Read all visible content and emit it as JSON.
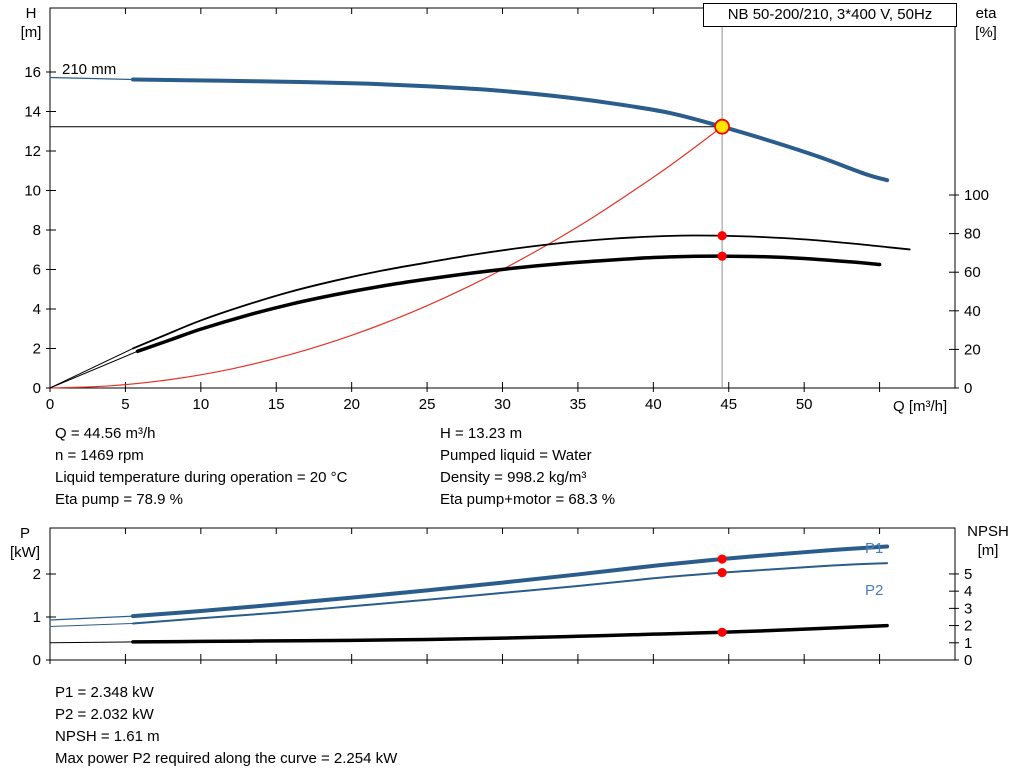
{
  "title_box": {
    "text": "NB 50-200/210, 3*400 V, 50Hz"
  },
  "labels": {
    "h_axis": "H",
    "h_unit": "[m]",
    "eta_axis": "eta",
    "eta_unit": "[%]",
    "q_axis": "Q [m³/h]",
    "p_axis": "P",
    "p_unit": "[kW]",
    "npsh_axis": "NPSH",
    "npsh_unit": "[m]",
    "impeller": "210 mm",
    "p1": "P1",
    "p2": "P2"
  },
  "info_top": {
    "left": [
      "Q = 44.56 m³/h",
      "n = 1469 rpm",
      "Liquid temperature during operation = 20 °C",
      "Eta pump = 78.9 %"
    ],
    "right": [
      "H = 13.23 m",
      "Pumped liquid = Water",
      "Density = 998.2 kg/m³",
      "Eta pump+motor = 68.3 %"
    ]
  },
  "info_bottom": [
    "P1 = 2.348 kW",
    "P2 = 2.032 kW",
    "NPSH = 1.61 m",
    "Max power P2 required along the curve = 2.254 kW"
  ],
  "colors": {
    "curve_blue": "#2a5d8c",
    "label_blue": "#4a7fb5",
    "curve_black": "#000000",
    "curve_red": "#e63329",
    "dot_red": "#ff0000",
    "duty_fill": "#ffe400",
    "duty_stroke": "#ff0000",
    "guide_gray": "#909090"
  },
  "chart_data": {
    "type": "line",
    "duty_point": {
      "Q_m3h": 44.56,
      "H_m": 13.23,
      "n_rpm": 1469,
      "eta_pump_pct": 78.9,
      "eta_pump_motor_pct": 68.3,
      "P1_kW": 2.348,
      "P2_kW": 2.032,
      "NPSH_m": 1.61,
      "max_P2_along_curve_kW": 2.254,
      "pumped_liquid": "Water",
      "liquid_temp_C": 20,
      "density_kg_m3": 998.2
    },
    "charts": [
      {
        "name": "qh-eta-chart",
        "title": "NB 50-200/210, 3*400 V, 50Hz",
        "x_axis": {
          "label": "Q [m³/h]",
          "min": 0,
          "max": 60,
          "ticks": [
            {
              "v": 0,
              "label": "0"
            },
            {
              "v": 5,
              "label": "5"
            },
            {
              "v": 10,
              "label": "10"
            },
            {
              "v": 15,
              "label": "15"
            },
            {
              "v": 20,
              "label": "20"
            },
            {
              "v": 25,
              "label": "25"
            },
            {
              "v": 30,
              "label": "30"
            },
            {
              "v": 35,
              "label": "35"
            },
            {
              "v": 40,
              "label": "40"
            },
            {
              "v": 45,
              "label": "45"
            },
            {
              "v": 50,
              "label": "50"
            },
            {
              "v": 55,
              "label": ""
            }
          ]
        },
        "axes": {
          "H": {
            "min": 0,
            "max": 19.24
          },
          "eta": {
            "min": 0,
            "max": 196.9
          }
        },
        "y_left": {
          "axis": "H",
          "ticks": [
            {
              "v": 0,
              "label": "0"
            },
            {
              "v": 2,
              "label": "2"
            },
            {
              "v": 4,
              "label": "4"
            },
            {
              "v": 6,
              "label": "6"
            },
            {
              "v": 8,
              "label": "8"
            },
            {
              "v": 10,
              "label": "10"
            },
            {
              "v": 12,
              "label": "12"
            },
            {
              "v": 14,
              "label": "14"
            },
            {
              "v": 16,
              "label": "16"
            }
          ]
        },
        "y_right": {
          "axis": "eta",
          "ticks": [
            {
              "v": 0,
              "label": "0"
            },
            {
              "v": 20,
              "label": "20"
            },
            {
              "v": 40,
              "label": "40"
            },
            {
              "v": 60,
              "label": "60"
            },
            {
              "v": 80,
              "label": "80"
            },
            {
              "v": 100,
              "label": "100"
            }
          ]
        },
        "guides": [
          {
            "type": "v",
            "q": 44.56,
            "color": "#909090"
          },
          {
            "type": "h",
            "axis": "H",
            "v": 13.23,
            "to_q": 44.56,
            "color": "#000000"
          }
        ],
        "series": [
          {
            "name": "head-210mm-lead",
            "axis": "H",
            "color": "#2a5d8c",
            "width": 1.2,
            "points": [
              [
                0,
                15.72
              ],
              [
                5.5,
                15.62
              ]
            ]
          },
          {
            "name": "head-210mm",
            "axis": "H",
            "color": "#2a5d8c",
            "width": 4,
            "points": [
              [
                5.5,
                15.62
              ],
              [
                9,
                15.58
              ],
              [
                13,
                15.54
              ],
              [
                17,
                15.49
              ],
              [
                21,
                15.41
              ],
              [
                25,
                15.28
              ],
              [
                29,
                15.1
              ],
              [
                33,
                14.82
              ],
              [
                37,
                14.44
              ],
              [
                41,
                13.94
              ],
              [
                44.56,
                13.23
              ],
              [
                48,
                12.45
              ],
              [
                51,
                11.7
              ],
              [
                54,
                10.85
              ],
              [
                55.5,
                10.52
              ]
            ]
          },
          {
            "name": "system-curve",
            "axis": "H",
            "color": "#e63329",
            "width": 1.2,
            "points": [
              [
                0,
                0
              ],
              [
                4,
                0.11
              ],
              [
                8,
                0.43
              ],
              [
                12,
                0.96
              ],
              [
                16,
                1.71
              ],
              [
                20,
                2.67
              ],
              [
                24,
                3.84
              ],
              [
                28,
                5.23
              ],
              [
                32,
                6.83
              ],
              [
                36,
                8.64
              ],
              [
                40,
                10.67
              ],
              [
                42,
                11.76
              ],
              [
                44.56,
                13.23
              ]
            ]
          },
          {
            "name": "eta-pump-lead",
            "axis": "eta",
            "color": "#000000",
            "width": 1,
            "points": [
              [
                0,
                0
              ],
              [
                5.5,
                20.5
              ]
            ]
          },
          {
            "name": "eta-pump",
            "axis": "eta",
            "color": "#000000",
            "width": 1.8,
            "points": [
              [
                5.5,
                20.5
              ],
              [
                7.5,
                27
              ],
              [
                10,
                35
              ],
              [
                13,
                43
              ],
              [
                16,
                50
              ],
              [
                19,
                55.8
              ],
              [
                22,
                60.8
              ],
              [
                25,
                65
              ],
              [
                28,
                69
              ],
              [
                31,
                72.4
              ],
              [
                34,
                75.2
              ],
              [
                37,
                77.2
              ],
              [
                40,
                78.5
              ],
              [
                42.5,
                79
              ],
              [
                44.56,
                78.9
              ],
              [
                47,
                78.3
              ],
              [
                50,
                77
              ],
              [
                53,
                75
              ],
              [
                55.5,
                73
              ],
              [
                57,
                71.8
              ]
            ]
          },
          {
            "name": "eta-pump-motor-lead",
            "axis": "eta",
            "color": "#000000",
            "width": 1,
            "points": [
              [
                0,
                0
              ],
              [
                5.8,
                19
              ]
            ]
          },
          {
            "name": "eta-pump-motor",
            "axis": "eta",
            "color": "#000000",
            "width": 3.5,
            "points": [
              [
                5.8,
                19
              ],
              [
                8,
                25
              ],
              [
                10,
                30.5
              ],
              [
                13,
                37.5
              ],
              [
                16,
                43.5
              ],
              [
                19,
                48.5
              ],
              [
                22,
                52.8
              ],
              [
                25,
                56.4
              ],
              [
                28,
                59.6
              ],
              [
                31,
                62.3
              ],
              [
                34,
                64.5
              ],
              [
                37,
                66.2
              ],
              [
                40,
                67.6
              ],
              [
                42.5,
                68.2
              ],
              [
                44.56,
                68.3
              ],
              [
                47,
                68.1
              ],
              [
                50,
                67.1
              ],
              [
                53,
                65.4
              ],
              [
                55,
                64
              ]
            ]
          }
        ],
        "markers": [
          {
            "q": 44.56,
            "v": 78.9,
            "axis": "eta",
            "style": "dot"
          },
          {
            "q": 44.56,
            "v": 68.3,
            "axis": "eta",
            "style": "dot"
          },
          {
            "q": 44.56,
            "v": 13.23,
            "axis": "H",
            "style": "duty"
          }
        ]
      },
      {
        "name": "power-npsh-chart",
        "x_axis": {
          "label": "",
          "min": 0,
          "max": 60,
          "ticks": [
            {
              "v": 0,
              "label": ""
            },
            {
              "v": 5,
              "label": ""
            },
            {
              "v": 10,
              "label": ""
            },
            {
              "v": 15,
              "label": ""
            },
            {
              "v": 20,
              "label": ""
            },
            {
              "v": 25,
              "label": ""
            },
            {
              "v": 30,
              "label": ""
            },
            {
              "v": 35,
              "label": ""
            },
            {
              "v": 40,
              "label": ""
            },
            {
              "v": 45,
              "label": ""
            },
            {
              "v": 50,
              "label": ""
            },
            {
              "v": 55,
              "label": ""
            }
          ]
        },
        "axes": {
          "P": {
            "min": 0,
            "max": 3.07
          },
          "NPSH": {
            "min": 0,
            "max": 7.67
          }
        },
        "y_left": {
          "axis": "P",
          "ticks": [
            {
              "v": 0,
              "label": "0"
            },
            {
              "v": 1,
              "label": "1"
            },
            {
              "v": 2,
              "label": "2"
            }
          ]
        },
        "y_right": {
          "axis": "NPSH",
          "ticks": [
            {
              "v": 0,
              "label": "0"
            },
            {
              "v": 1,
              "label": "1"
            },
            {
              "v": 2,
              "label": "2"
            },
            {
              "v": 3,
              "label": "3"
            },
            {
              "v": 4,
              "label": "4"
            },
            {
              "v": 5,
              "label": "5"
            }
          ]
        },
        "guides": [],
        "series": [
          {
            "name": "p1-lead",
            "axis": "P",
            "color": "#2a5d8c",
            "width": 1.2,
            "points": [
              [
                0,
                0.93
              ],
              [
                5.5,
                1.02
              ]
            ]
          },
          {
            "name": "p1",
            "axis": "P",
            "color": "#2a5d8c",
            "width": 4,
            "points": [
              [
                5.5,
                1.02
              ],
              [
                10,
                1.14
              ],
              [
                15,
                1.29
              ],
              [
                20,
                1.45
              ],
              [
                25,
                1.62
              ],
              [
                30,
                1.8
              ],
              [
                35,
                1.99
              ],
              [
                40,
                2.19
              ],
              [
                44.56,
                2.348
              ],
              [
                48,
                2.45
              ],
              [
                52,
                2.56
              ],
              [
                55.5,
                2.64
              ]
            ]
          },
          {
            "name": "p2-lead",
            "axis": "P",
            "color": "#2a5d8c",
            "width": 1,
            "points": [
              [
                0,
                0.78
              ],
              [
                5.5,
                0.85
              ]
            ]
          },
          {
            "name": "p2",
            "axis": "P",
            "color": "#2a5d8c",
            "width": 2,
            "points": [
              [
                5.5,
                0.85
              ],
              [
                10,
                0.97
              ],
              [
                15,
                1.1
              ],
              [
                20,
                1.25
              ],
              [
                25,
                1.4
              ],
              [
                30,
                1.56
              ],
              [
                35,
                1.72
              ],
              [
                40,
                1.9
              ],
              [
                44.56,
                2.032
              ],
              [
                48,
                2.11
              ],
              [
                52,
                2.2
              ],
              [
                55.5,
                2.254
              ]
            ]
          },
          {
            "name": "npsh-lead",
            "axis": "NPSH",
            "color": "#000000",
            "width": 1,
            "points": [
              [
                0,
                1.0
              ],
              [
                5.5,
                1.05
              ]
            ]
          },
          {
            "name": "npsh",
            "axis": "NPSH",
            "color": "#000000",
            "width": 3.5,
            "points": [
              [
                5.5,
                1.05
              ],
              [
                10,
                1.08
              ],
              [
                15,
                1.11
              ],
              [
                20,
                1.14
              ],
              [
                25,
                1.19
              ],
              [
                30,
                1.27
              ],
              [
                35,
                1.38
              ],
              [
                40,
                1.5
              ],
              [
                44.56,
                1.61
              ],
              [
                48,
                1.72
              ],
              [
                52,
                1.87
              ],
              [
                55.5,
                2.0
              ]
            ]
          }
        ],
        "markers": [
          {
            "q": 44.56,
            "v": 2.348,
            "axis": "P",
            "style": "dot"
          },
          {
            "q": 44.56,
            "v": 2.032,
            "axis": "P",
            "style": "dot"
          },
          {
            "q": 44.56,
            "v": 1.61,
            "axis": "NPSH",
            "style": "dot"
          }
        ]
      }
    ]
  }
}
